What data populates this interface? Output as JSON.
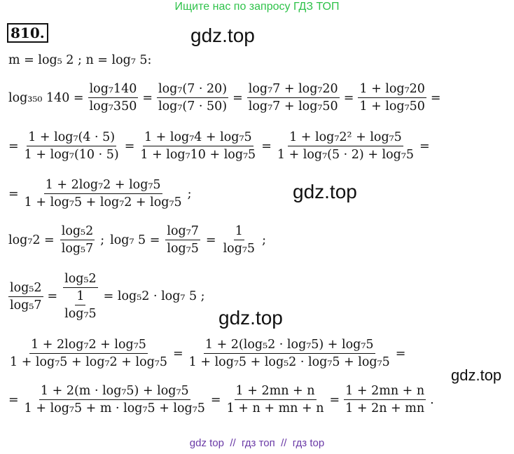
{
  "header": {
    "banner": "Ищите нас по запросу ГДЗ ТОП"
  },
  "problem": {
    "number": "810."
  },
  "lines": [
    [
      "m = log₅ 2 ; n = log₇ 5:"
    ],
    [
      "log₃₅₀ 140 =",
      {
        "num": "log₇140",
        "den": "log₇350"
      },
      "=",
      {
        "num": "log₇(7 · 20)",
        "den": "log₇(7 · 50)"
      },
      "=",
      {
        "num": "log₇7 + log₇20",
        "den": "log₇7 + log₇50"
      },
      "=",
      {
        "num": "1 + log₇20",
        "den": "1 + log₇50"
      },
      "="
    ],
    [
      "=",
      {
        "num": "1 + log₇(4 · 5)",
        "den": "1 + log₇(10 · 5)"
      },
      "=",
      {
        "num": "1 + log₇4 + log₇5",
        "den": "1 + log₇10 + log₇5"
      },
      "=",
      {
        "num": "1 + log₇2² + log₇5",
        "den": "1 + log₇(5 · 2) + log₇5"
      },
      "="
    ],
    [
      "=",
      {
        "num": "1 + 2log₇2 + log₇5",
        "den": "1 + log₇5 + log₇2 + log₇5"
      },
      ";"
    ],
    [
      "log₇2 =",
      {
        "num": "log₅2",
        "den": "log₅7"
      },
      ";",
      "log₇ 5 =",
      {
        "num": "log₇7",
        "den": "log₇5"
      },
      "=",
      {
        "num": "1",
        "den": "log₇5"
      },
      ";"
    ],
    [
      {
        "num": "log₅2",
        "den": "log₅7"
      },
      "=",
      {
        "num": "log₅2",
        "den": {
          "num": "1",
          "den": "log₇5"
        }
      },
      "= log₅2 · log₇ 5 ;"
    ],
    [
      {
        "num": "1 + 2log₇2 + log₇5",
        "den": "1 + log₇5 + log₇2 + log₇5"
      },
      "=",
      {
        "num": "1 + 2(log₅2 · log₇5) + log₇5",
        "den": "1 + log₇5 + log₅2 · log₇5 + log₇5"
      },
      "="
    ],
    [
      "=",
      {
        "num": "1 + 2(m · log₇5) + log₇5",
        "den": "1 + log₇5 + m · log₇5 + log₇5"
      },
      "=",
      {
        "num": "1 + 2mn + n",
        "den": "1 + n + mn + n"
      },
      "=",
      {
        "num": "1 + 2mn + n",
        "den": "1 + 2n + mn"
      },
      "."
    ]
  ],
  "watermarks": [
    "gdz.top",
    "gdz.top",
    "gdz.top",
    "gdz.top"
  ],
  "footer": "gdz top  //  гдз топ  //  гдз top"
}
